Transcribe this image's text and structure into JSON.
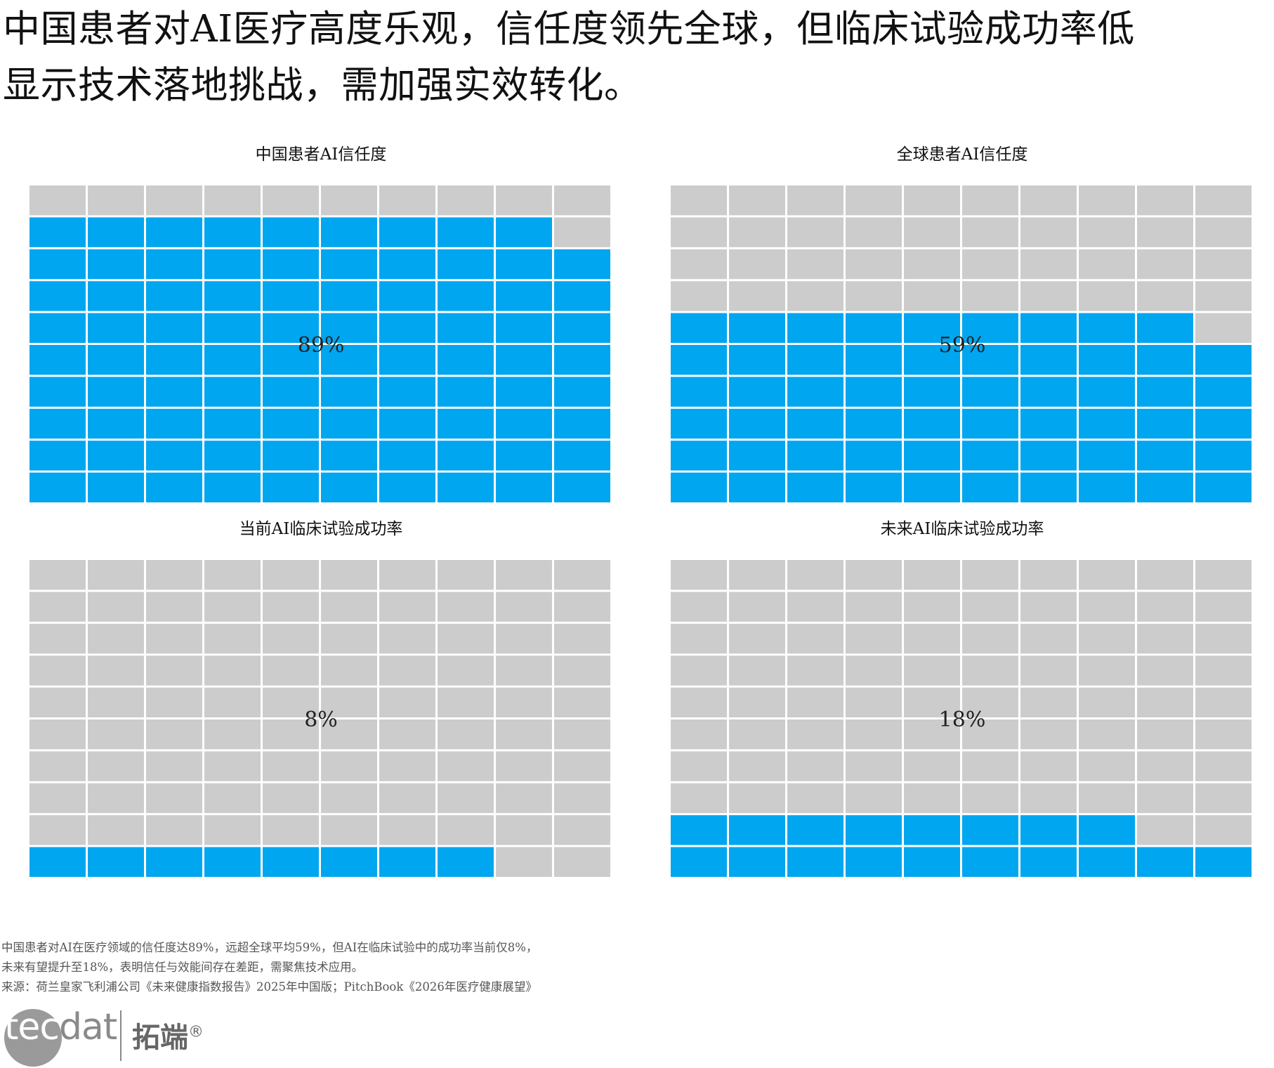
{
  "headline": {
    "line1": "中国患者对AI医疗高度乐观，信任度领先全球，但临床试验成功率低",
    "line2": "显示技术落地挑战，需加强实效转化。"
  },
  "colors": {
    "filled": "#00a6f0",
    "empty": "#cccccc",
    "gap": "#ffffff"
  },
  "chart_data": [
    {
      "type": "waffle",
      "title": "中国患者AI信任度",
      "value": 89,
      "label": "89%",
      "rows": 10,
      "cols": 10
    },
    {
      "type": "waffle",
      "title": "全球患者AI信任度",
      "value": 59,
      "label": "59%",
      "rows": 10,
      "cols": 10
    },
    {
      "type": "waffle",
      "title": "当前AI临床试验成功率",
      "value": 8,
      "label": "8%",
      "rows": 10,
      "cols": 10
    },
    {
      "type": "waffle",
      "title": "未来AI临床试验成功率",
      "value": 18,
      "label": "18%",
      "rows": 10,
      "cols": 10
    }
  ],
  "notes": {
    "line1": "中国患者对AI在医疗领域的信任度达89%，远超全球平均59%，但AI在临床试验中的成功率当前仅8%，",
    "line2": "未来有望提升至18%，表明信任与效能间存在差距，需聚焦技术应用。",
    "source": "来源：荷兰皇家飞利浦公司《未来健康指数报告》2025年中国版；PitchBook《2026年医疗健康展望》"
  },
  "logo": {
    "tec": "tec",
    "dat": "dat",
    "cn": "拓端",
    "mark": "®"
  }
}
